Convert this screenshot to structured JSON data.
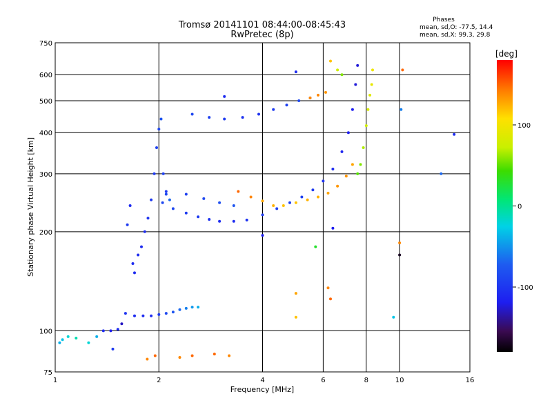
{
  "chart_data": {
    "type": "scatter",
    "title": "Tromsø 20141101 08:44:00-08:45:43",
    "subtitle": "RwPretec (8p)",
    "xlabel": "Frequency [MHz]",
    "ylabel": "Stationary phase Virtual Height [km]",
    "x_scale": "log2",
    "y_scale": "log",
    "xlim": [
      1,
      16
    ],
    "ylim": [
      75,
      750
    ],
    "x_ticks": [
      1,
      2,
      4,
      6,
      8,
      10,
      16
    ],
    "x_tick_labels": [
      "1",
      "2",
      "4",
      "6",
      "8",
      "10",
      "16"
    ],
    "y_ticks": [
      75,
      100,
      200,
      300,
      400,
      500,
      600,
      750
    ],
    "y_tick_labels": [
      "75",
      "100",
      "200",
      "300",
      "400",
      "500",
      "600",
      "750"
    ],
    "grid": true,
    "stats": {
      "header": "Phases",
      "line1": "mean, sd,O: -77.5, 14.4",
      "line2": "mean, sd,X:  99.3, 29.8"
    },
    "colorbar": {
      "label": "[deg]",
      "range": [
        -180,
        180
      ],
      "ticks": [
        100,
        0,
        -100
      ],
      "tick_labels": [
        "100",
        "0",
        "-100"
      ]
    },
    "series": [
      {
        "values": [
          [
            1.03,
            92,
            -40
          ],
          [
            1.05,
            94,
            -30
          ],
          [
            1.09,
            96,
            -20
          ],
          [
            1.15,
            95,
            -10
          ],
          [
            1.25,
            92,
            -20
          ],
          [
            1.32,
            96,
            -40
          ],
          [
            1.38,
            100,
            -110
          ],
          [
            1.45,
            100,
            -120
          ],
          [
            1.52,
            101,
            -110
          ],
          [
            1.56,
            105,
            -130
          ],
          [
            1.47,
            88,
            -100
          ]
        ]
      },
      {
        "values": [
          [
            1.62,
            210,
            -100
          ],
          [
            1.65,
            240,
            -110
          ],
          [
            1.68,
            160,
            -110
          ],
          [
            1.7,
            150,
            -110
          ],
          [
            1.74,
            170,
            -110
          ],
          [
            1.78,
            180,
            -110
          ],
          [
            1.82,
            200,
            -110
          ],
          [
            1.86,
            220,
            -105
          ],
          [
            1.9,
            250,
            -100
          ],
          [
            1.94,
            300,
            -100
          ],
          [
            1.97,
            360,
            -95
          ],
          [
            2.0,
            410,
            -90
          ],
          [
            2.03,
            440,
            -80
          ],
          [
            2.06,
            300,
            -95
          ],
          [
            2.1,
            260,
            -90
          ],
          [
            2.15,
            250,
            -70
          ]
        ]
      },
      {
        "values": [
          [
            1.6,
            113,
            -105
          ],
          [
            1.7,
            111,
            -110
          ],
          [
            1.8,
            111,
            -110
          ],
          [
            1.9,
            111,
            -110
          ],
          [
            2.0,
            112,
            -100
          ],
          [
            2.1,
            113,
            -90
          ],
          [
            2.2,
            114,
            -80
          ],
          [
            2.3,
            116,
            -70
          ],
          [
            2.4,
            117,
            -60
          ],
          [
            2.5,
            118,
            -50
          ],
          [
            2.6,
            118,
            -40
          ]
        ]
      },
      {
        "values": [
          [
            2.05,
            245,
            -90
          ],
          [
            2.2,
            235,
            -90
          ],
          [
            2.4,
            228,
            -100
          ],
          [
            2.6,
            222,
            -100
          ],
          [
            2.8,
            218,
            -105
          ],
          [
            3.0,
            215,
            -110
          ],
          [
            3.3,
            215,
            -110
          ],
          [
            3.6,
            217,
            -105
          ],
          [
            4.0,
            225,
            -100
          ],
          [
            4.4,
            235,
            -95
          ],
          [
            4.8,
            245,
            -95
          ],
          [
            5.2,
            255,
            -95
          ],
          [
            5.6,
            268,
            -100
          ],
          [
            6.0,
            285,
            -105
          ],
          [
            6.4,
            310,
            -110
          ],
          [
            6.8,
            350,
            -115
          ],
          [
            7.1,
            400,
            -120
          ],
          [
            7.3,
            470,
            -120
          ],
          [
            7.45,
            560,
            -125
          ],
          [
            7.55,
            640,
            -125
          ]
        ]
      },
      {
        "values": [
          [
            2.1,
            265,
            -100
          ],
          [
            2.4,
            260,
            -95
          ],
          [
            2.7,
            252,
            -90
          ],
          [
            3.0,
            245,
            -85
          ],
          [
            3.3,
            240,
            -80
          ]
        ]
      },
      {
        "values": [
          [
            2.5,
            455,
            -90
          ],
          [
            2.8,
            445,
            -95
          ],
          [
            3.1,
            440,
            -100
          ],
          [
            3.5,
            445,
            -105
          ],
          [
            3.9,
            455,
            -105
          ],
          [
            4.3,
            470,
            -100
          ],
          [
            4.7,
            485,
            -95
          ],
          [
            5.1,
            500,
            -90
          ],
          [
            5.5,
            510,
            -85
          ]
        ]
      },
      {
        "values": [
          [
            3.4,
            265,
            150
          ],
          [
            3.7,
            255,
            140
          ],
          [
            4.0,
            248,
            130
          ],
          [
            4.3,
            240,
            125
          ],
          [
            4.6,
            240,
            120
          ],
          [
            5.0,
            245,
            120
          ],
          [
            5.4,
            250,
            125
          ],
          [
            5.8,
            255,
            125
          ],
          [
            6.2,
            262,
            130
          ],
          [
            6.6,
            275,
            135
          ],
          [
            7.0,
            295,
            135
          ],
          [
            7.3,
            320,
            130
          ]
        ]
      },
      {
        "values": [
          [
            5.5,
            510,
            140
          ],
          [
            5.8,
            520,
            140
          ],
          [
            6.1,
            530,
            135
          ]
        ]
      },
      {
        "values": [
          [
            7.55,
            300,
            50
          ],
          [
            7.7,
            320,
            60
          ],
          [
            7.85,
            360,
            70
          ],
          [
            8.0,
            420,
            80
          ],
          [
            8.1,
            470,
            85
          ],
          [
            8.2,
            520,
            90
          ],
          [
            8.3,
            560,
            95
          ],
          [
            8.35,
            620,
            100
          ]
        ]
      },
      {
        "values": [
          [
            1.85,
            82,
            140
          ],
          [
            1.95,
            84,
            150
          ],
          [
            2.3,
            83,
            140
          ],
          [
            2.5,
            84,
            150
          ],
          [
            2.9,
            85,
            150
          ],
          [
            3.2,
            84,
            140
          ]
        ]
      },
      {
        "values": [
          [
            6.3,
            660,
            120
          ],
          [
            6.6,
            620,
            80
          ],
          [
            6.8,
            600,
            60
          ],
          [
            6.2,
            135,
            140
          ],
          [
            6.3,
            125,
            150
          ],
          [
            5.0,
            130,
            130
          ],
          [
            5.0,
            110,
            120
          ],
          [
            5.7,
            180,
            30
          ],
          [
            9.6,
            110,
            -30
          ],
          [
            10.0,
            170,
            -170
          ],
          [
            10.0,
            185,
            140
          ],
          [
            10.1,
            470,
            -60
          ],
          [
            10.2,
            620,
            150
          ],
          [
            13.2,
            300,
            -70
          ],
          [
            14.4,
            395,
            -110
          ],
          [
            5.0,
            612,
            -110
          ],
          [
            3.1,
            515,
            -110
          ],
          [
            4.0,
            195,
            -120
          ],
          [
            6.4,
            205,
            -120
          ]
        ]
      }
    ]
  }
}
